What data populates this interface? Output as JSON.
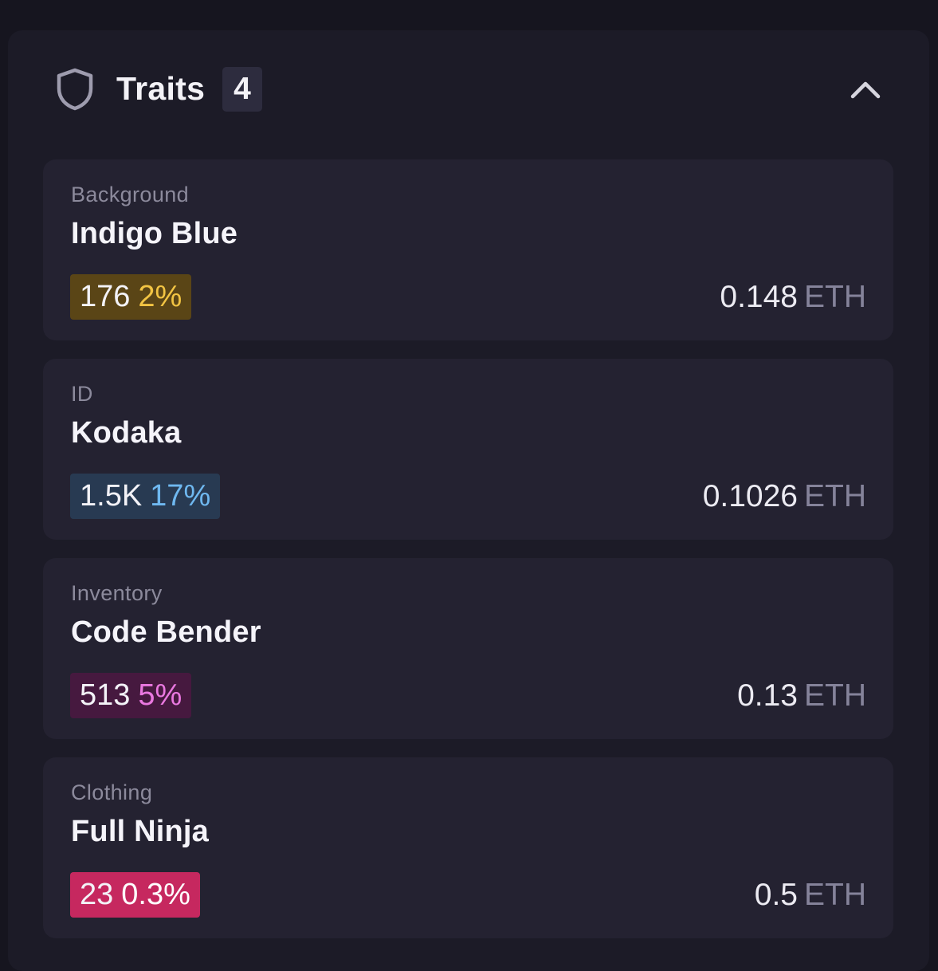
{
  "header": {
    "title": "Traits",
    "count": "4"
  },
  "colors": {
    "page_background": "#16151f",
    "panel_background": "#1c1b27",
    "card_background": "#242231"
  },
  "traits": [
    {
      "type": "Background",
      "value": "Indigo Blue",
      "count": "176",
      "percent": "2%",
      "badge_bg": "#5a4516",
      "percent_color": "#f2c443",
      "price": "0.148",
      "currency": "ETH"
    },
    {
      "type": "ID",
      "value": "Kodaka",
      "count": "1.5K",
      "percent": "17%",
      "badge_bg": "#283a52",
      "percent_color": "#6fb8f0",
      "price": "0.1026",
      "currency": "ETH"
    },
    {
      "type": "Inventory",
      "value": "Code Bender",
      "count": "513",
      "percent": "5%",
      "badge_bg": "#46193f",
      "percent_color": "#ea78e0",
      "price": "0.13",
      "currency": "ETH"
    },
    {
      "type": "Clothing",
      "value": "Full Ninja",
      "count": "23",
      "percent": "0.3%",
      "badge_bg": "#c6285f",
      "percent_color": "#ffffff",
      "price": "0.5",
      "currency": "ETH"
    }
  ]
}
